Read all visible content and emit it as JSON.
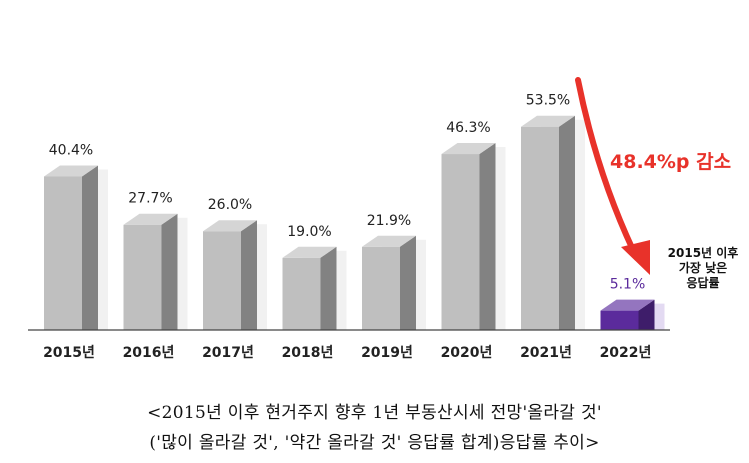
{
  "chart_data": {
    "type": "bar",
    "categories": [
      "2015년",
      "2016년",
      "2017년",
      "2018년",
      "2019년",
      "2020년",
      "2021년",
      "2022년"
    ],
    "values": [
      40.4,
      27.7,
      26.0,
      19.0,
      21.9,
      46.3,
      53.5,
      5.1
    ],
    "value_labels": [
      "40.4%",
      "27.7%",
      "26.0%",
      "19.0%",
      "21.9%",
      "46.3%",
      "53.5%",
      "5.1%"
    ],
    "unit": "%",
    "ylim": [
      0,
      60
    ],
    "grid": false,
    "legend": "none",
    "highlight_index": 7,
    "annotations": {
      "drop_label": "48.4%p 감소",
      "note_lines": [
        "2015년 이후",
        "가장 낮은",
        "응답률"
      ]
    },
    "colors": {
      "bar": "#bfbfbf",
      "bar_highlight": "#5b2b9c",
      "highlight_text": "#5b2b9c",
      "arrow": "#e8322a",
      "text": "#222222"
    }
  },
  "caption": {
    "line1": "<2015년 이후 현거주지 향후 1년 부동산시세 전망'올라갈 것'",
    "line2": "('많이 올라갈 것', '약간 올라갈 것' 응답률 합계)응답률 추이>"
  }
}
